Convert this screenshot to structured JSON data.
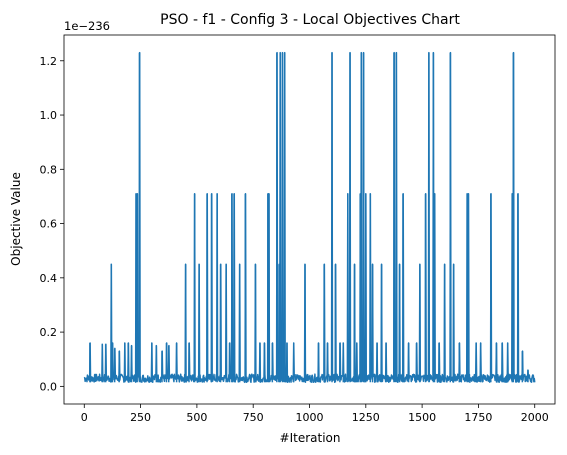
{
  "chart_data": {
    "type": "line",
    "title": "PSO - f1 - Config 3 - Local Objectives Chart",
    "xlabel": "#Iteration",
    "ylabel": "Objective Value",
    "y_scale_label": "1e−236",
    "xlim": [
      -90,
      2090
    ],
    "ylim": [
      -0.065,
      1.295
    ],
    "x_ticks": [
      0,
      250,
      500,
      750,
      1000,
      1250,
      1500,
      1750,
      2000
    ],
    "x_tick_labels": [
      "0",
      "250",
      "500",
      "750",
      "1000",
      "1250",
      "1500",
      "1750",
      "2000"
    ],
    "y_ticks": [
      0.0,
      0.2,
      0.4,
      0.6,
      0.8,
      1.0,
      1.2
    ],
    "y_tick_labels": [
      "0.0",
      "0.2",
      "0.4",
      "0.6",
      "0.8",
      "1.0",
      "1.2"
    ],
    "grid": false,
    "series": [
      {
        "color": "#1f77b4",
        "baseline_low": 0.015,
        "baseline_high": 0.045,
        "x_end": 2000,
        "end_value": 0.015,
        "spikes": [
          [
            25,
            0.16
          ],
          [
            80,
            0.155
          ],
          [
            95,
            0.155
          ],
          [
            120,
            0.45
          ],
          [
            125,
            0.16
          ],
          [
            135,
            0.14
          ],
          [
            155,
            0.13
          ],
          [
            180,
            0.16
          ],
          [
            195,
            0.16
          ],
          [
            210,
            0.15
          ],
          [
            230,
            0.71
          ],
          [
            235,
            0.71
          ],
          [
            245,
            1.23
          ],
          [
            300,
            0.16
          ],
          [
            320,
            0.15
          ],
          [
            345,
            0.13
          ],
          [
            365,
            0.16
          ],
          [
            375,
            0.15
          ],
          [
            410,
            0.16
          ],
          [
            450,
            0.45
          ],
          [
            465,
            0.16
          ],
          [
            490,
            0.71
          ],
          [
            510,
            0.45
          ],
          [
            545,
            0.71
          ],
          [
            565,
            0.71
          ],
          [
            590,
            0.71
          ],
          [
            605,
            0.45
          ],
          [
            630,
            0.45
          ],
          [
            645,
            0.16
          ],
          [
            655,
            0.71
          ],
          [
            665,
            0.71
          ],
          [
            690,
            0.45
          ],
          [
            715,
            0.71
          ],
          [
            760,
            0.45
          ],
          [
            780,
            0.16
          ],
          [
            800,
            0.16
          ],
          [
            815,
            0.71
          ],
          [
            820,
            0.71
          ],
          [
            835,
            0.16
          ],
          [
            855,
            1.23
          ],
          [
            865,
            0.45
          ],
          [
            870,
            1.23
          ],
          [
            880,
            1.23
          ],
          [
            890,
            1.23
          ],
          [
            900,
            0.16
          ],
          [
            930,
            0.16
          ],
          [
            980,
            0.45
          ],
          [
            1040,
            0.16
          ],
          [
            1065,
            0.45
          ],
          [
            1080,
            0.16
          ],
          [
            1100,
            1.23
          ],
          [
            1115,
            0.45
          ],
          [
            1135,
            0.16
          ],
          [
            1150,
            0.16
          ],
          [
            1170,
            0.71
          ],
          [
            1180,
            1.23
          ],
          [
            1200,
            0.45
          ],
          [
            1210,
            0.16
          ],
          [
            1225,
            0.71
          ],
          [
            1230,
            1.23
          ],
          [
            1240,
            1.23
          ],
          [
            1250,
            0.71
          ],
          [
            1270,
            0.71
          ],
          [
            1280,
            0.45
          ],
          [
            1300,
            0.16
          ],
          [
            1320,
            0.45
          ],
          [
            1340,
            0.16
          ],
          [
            1375,
            1.23
          ],
          [
            1385,
            1.23
          ],
          [
            1400,
            0.45
          ],
          [
            1415,
            0.71
          ],
          [
            1440,
            0.16
          ],
          [
            1475,
            0.16
          ],
          [
            1490,
            0.45
          ],
          [
            1515,
            0.71
          ],
          [
            1530,
            1.23
          ],
          [
            1550,
            1.23
          ],
          [
            1555,
            0.71
          ],
          [
            1575,
            0.16
          ],
          [
            1600,
            0.45
          ],
          [
            1625,
            1.23
          ],
          [
            1640,
            0.45
          ],
          [
            1665,
            0.16
          ],
          [
            1700,
            0.71
          ],
          [
            1705,
            0.71
          ],
          [
            1740,
            0.16
          ],
          [
            1760,
            0.16
          ],
          [
            1805,
            0.71
          ],
          [
            1830,
            0.16
          ],
          [
            1855,
            0.16
          ],
          [
            1880,
            0.16
          ],
          [
            1900,
            0.71
          ],
          [
            1905,
            1.23
          ],
          [
            1925,
            0.71
          ],
          [
            1945,
            0.13
          ],
          [
            1970,
            0.06
          ]
        ]
      }
    ]
  }
}
